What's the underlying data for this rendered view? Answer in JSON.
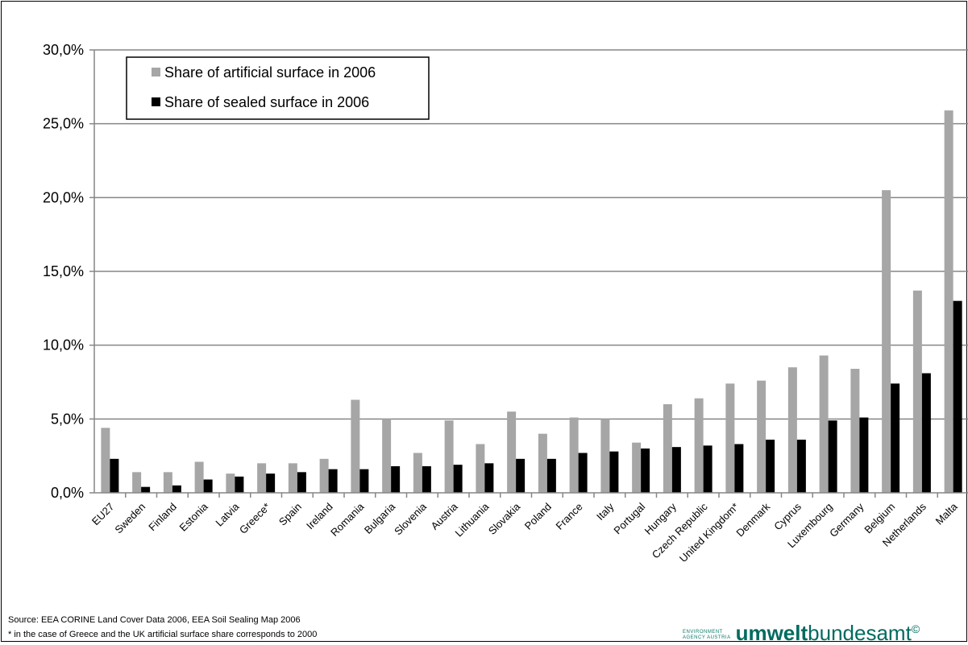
{
  "chart_data": {
    "type": "bar",
    "categories": [
      "EU27",
      "Sweden",
      "Finland",
      "Estonia",
      "Latvia",
      "Greece*",
      "Spain",
      "Ireland",
      "Romania",
      "Bulgaria",
      "Slovenia",
      "Austria",
      "Lithuania",
      "Slovakia",
      "Poland",
      "France",
      "Italy",
      "Portugal",
      "Hungary",
      "Czech Republic",
      "United Kingdom*",
      "Denmark",
      "Cyprus",
      "Luxembourg",
      "Germany",
      "Belgium",
      "Netherlands",
      "Malta"
    ],
    "series": [
      {
        "name": "Share of artificial surface in 2006",
        "color": "#a6a6a6",
        "values": [
          4.4,
          1.4,
          1.4,
          2.1,
          1.3,
          2.0,
          2.0,
          2.3,
          6.3,
          5.0,
          2.7,
          4.9,
          3.3,
          5.5,
          4.0,
          5.1,
          5.0,
          3.4,
          6.0,
          6.4,
          7.4,
          7.6,
          8.5,
          9.3,
          8.4,
          20.5,
          13.7,
          25.9
        ]
      },
      {
        "name": "Share of sealed surface in 2006",
        "color": "#000000",
        "values": [
          2.3,
          0.4,
          0.5,
          0.9,
          1.1,
          1.3,
          1.4,
          1.6,
          1.6,
          1.8,
          1.8,
          1.9,
          2.0,
          2.3,
          2.3,
          2.7,
          2.8,
          3.0,
          3.1,
          3.2,
          3.3,
          3.6,
          3.6,
          4.9,
          5.1,
          7.4,
          8.1,
          13.0
        ]
      }
    ],
    "yticks": [
      "0,0%",
      "5,0%",
      "10,0%",
      "15,0%",
      "20,0%",
      "25,0%",
      "30,0%"
    ],
    "ylim": [
      0,
      30
    ],
    "grid": true,
    "legend_position": "top-left",
    "xlabel": "",
    "ylabel": ""
  },
  "footer": {
    "source": "Source: EEA CORINE Land Cover Data 2006, EEA Soil Sealing Map 2006",
    "note": "* in the case of Greece and the UK artificial surface share corresponds to 2000"
  },
  "logo": {
    "small_line1": "ENVIRONMENT",
    "small_line2": "AGENCY AUSTRIA",
    "bold": "umwelt",
    "light": "bundesamt",
    "mark": "©"
  }
}
